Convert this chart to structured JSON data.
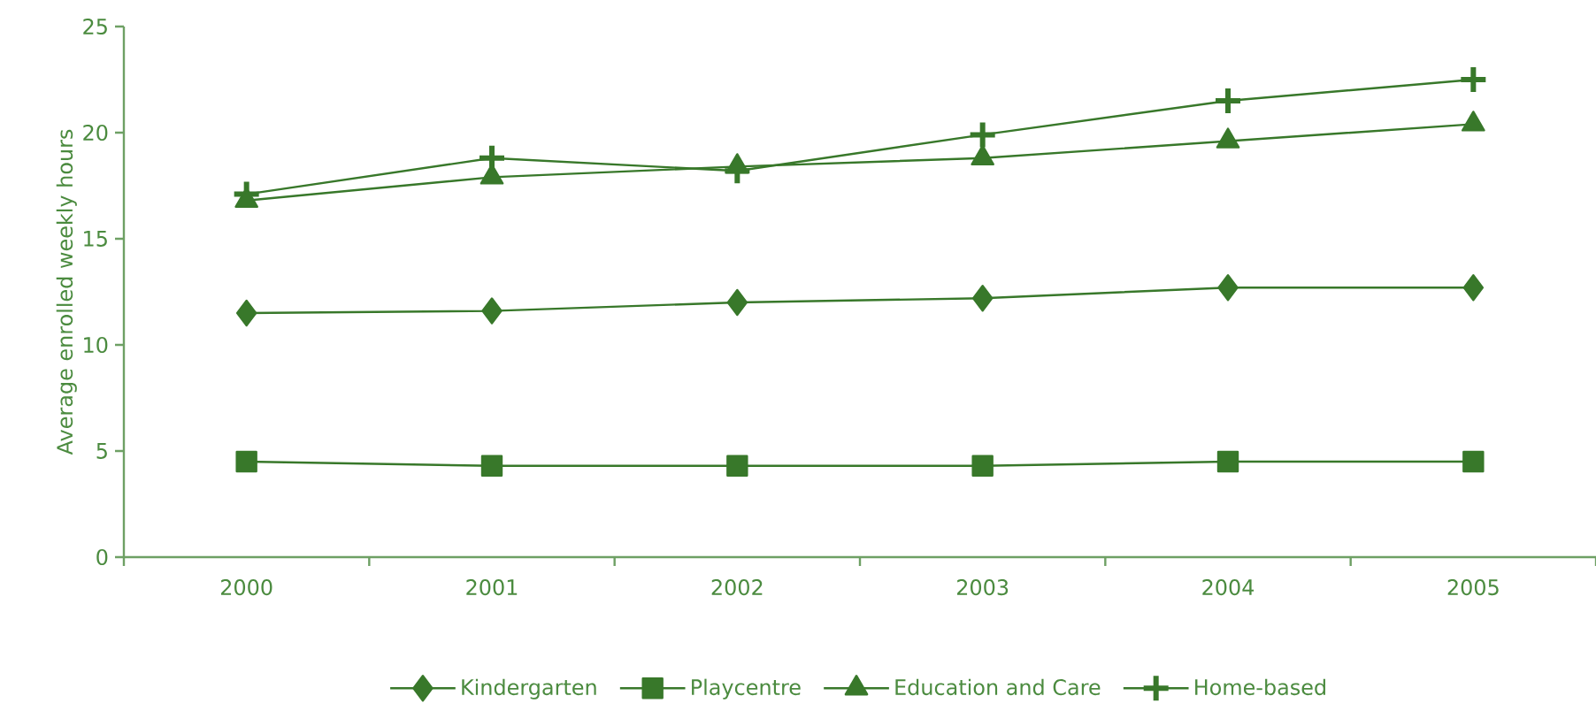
{
  "chart_data": {
    "type": "line",
    "ylabel": "Average enrolled weekly hours",
    "categories": [
      "2000",
      "2001",
      "2002",
      "2003",
      "2004",
      "2005"
    ],
    "ylim": [
      0,
      25
    ],
    "yticks": [
      0,
      5,
      10,
      15,
      20,
      25
    ],
    "grid": false,
    "legend": "bottom",
    "series": [
      {
        "name": "Kindergarten",
        "color": "#38782a",
        "marker": "diamond",
        "values": [
          11.5,
          11.6,
          12.0,
          12.2,
          12.7,
          12.7
        ]
      },
      {
        "name": "Playcentre",
        "color": "#38782a",
        "marker": "square",
        "values": [
          4.5,
          4.3,
          4.3,
          4.3,
          4.5,
          4.5
        ]
      },
      {
        "name": "Education and Care",
        "color": "#38782a",
        "marker": "triangle",
        "values": [
          16.8,
          17.9,
          18.4,
          18.8,
          19.6,
          20.4
        ]
      },
      {
        "name": "Home-based",
        "color": "#38782a",
        "marker": "cross",
        "values": [
          17.1,
          18.8,
          18.2,
          19.9,
          21.5,
          22.5
        ]
      }
    ]
  }
}
